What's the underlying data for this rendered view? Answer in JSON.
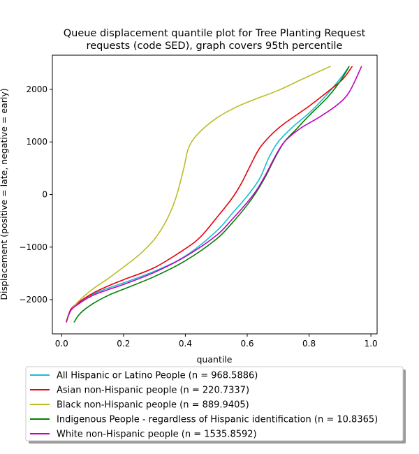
{
  "chart_data": {
    "type": "line",
    "title_lines": [
      "Queue displacement quantile plot for Tree Planting Request",
      "requests (code SED), graph covers 95th percentile"
    ],
    "xlabel": "quantile",
    "ylabel": "Displacement (positive = late, negative = early)",
    "xlim": [
      -0.03,
      1.02
    ],
    "ylim": [
      -2650,
      2650
    ],
    "xticks": [
      0.0,
      0.2,
      0.4,
      0.6,
      0.8,
      1.0
    ],
    "xtick_labels": [
      "0.0",
      "0.2",
      "0.4",
      "0.6",
      "0.8",
      "1.0"
    ],
    "yticks": [
      -2000,
      -1000,
      0,
      1000,
      2000
    ],
    "ytick_labels": [
      "−2000",
      "−1000",
      "0",
      "1000",
      "2000"
    ],
    "grid": false,
    "legend_position": "bottom-outside",
    "series": [
      {
        "name": "All Hispanic or Latino People (n = 968.5886)",
        "color": "#17becf",
        "points": [
          [
            0.015,
            -2430
          ],
          [
            0.03,
            -2200
          ],
          [
            0.06,
            -2050
          ],
          [
            0.1,
            -1900
          ],
          [
            0.15,
            -1780
          ],
          [
            0.2,
            -1680
          ],
          [
            0.3,
            -1460
          ],
          [
            0.4,
            -1170
          ],
          [
            0.5,
            -700
          ],
          [
            0.55,
            -370
          ],
          [
            0.6,
            -30
          ],
          [
            0.64,
            300
          ],
          [
            0.67,
            700
          ],
          [
            0.7,
            1000
          ],
          [
            0.75,
            1300
          ],
          [
            0.8,
            1550
          ],
          [
            0.85,
            1850
          ],
          [
            0.9,
            2200
          ],
          [
            0.93,
            2440
          ]
        ]
      },
      {
        "name": "Asian non-Hispanic people (n = 220.7337)",
        "color": "#e8000b",
        "points": [
          [
            0.015,
            -2430
          ],
          [
            0.03,
            -2180
          ],
          [
            0.06,
            -2030
          ],
          [
            0.1,
            -1880
          ],
          [
            0.15,
            -1740
          ],
          [
            0.2,
            -1620
          ],
          [
            0.3,
            -1390
          ],
          [
            0.4,
            -1030
          ],
          [
            0.45,
            -800
          ],
          [
            0.5,
            -450
          ],
          [
            0.55,
            -80
          ],
          [
            0.58,
            200
          ],
          [
            0.61,
            550
          ],
          [
            0.64,
            880
          ],
          [
            0.68,
            1150
          ],
          [
            0.72,
            1350
          ],
          [
            0.8,
            1680
          ],
          [
            0.87,
            2000
          ],
          [
            0.91,
            2200
          ],
          [
            0.94,
            2440
          ]
        ]
      },
      {
        "name": "Black non-Hispanic people (n = 889.9405)",
        "color": "#bcbd22",
        "points": [
          [
            0.015,
            -2400
          ],
          [
            0.03,
            -2200
          ],
          [
            0.06,
            -2000
          ],
          [
            0.1,
            -1800
          ],
          [
            0.15,
            -1600
          ],
          [
            0.2,
            -1380
          ],
          [
            0.25,
            -1150
          ],
          [
            0.3,
            -850
          ],
          [
            0.34,
            -480
          ],
          [
            0.37,
            -50
          ],
          [
            0.395,
            500
          ],
          [
            0.41,
            880
          ],
          [
            0.44,
            1150
          ],
          [
            0.5,
            1450
          ],
          [
            0.56,
            1650
          ],
          [
            0.62,
            1800
          ],
          [
            0.7,
            1980
          ],
          [
            0.78,
            2200
          ],
          [
            0.87,
            2440
          ]
        ]
      },
      {
        "name": "Indigenous People - regardless of Hispanic identification (n = 10.8365)",
        "color": "#008000",
        "points": [
          [
            0.04,
            -2430
          ],
          [
            0.06,
            -2260
          ],
          [
            0.1,
            -2080
          ],
          [
            0.15,
            -1920
          ],
          [
            0.2,
            -1800
          ],
          [
            0.3,
            -1560
          ],
          [
            0.4,
            -1260
          ],
          [
            0.5,
            -850
          ],
          [
            0.55,
            -550
          ],
          [
            0.6,
            -200
          ],
          [
            0.63,
            50
          ],
          [
            0.66,
            350
          ],
          [
            0.69,
            700
          ],
          [
            0.72,
            1000
          ],
          [
            0.76,
            1250
          ],
          [
            0.8,
            1500
          ],
          [
            0.86,
            1850
          ],
          [
            0.9,
            2150
          ],
          [
            0.93,
            2440
          ]
        ]
      },
      {
        "name": "White non-Hispanic people (n = 1535.8592)",
        "color": "#bf00bf",
        "points": [
          [
            0.015,
            -2430
          ],
          [
            0.03,
            -2200
          ],
          [
            0.06,
            -2060
          ],
          [
            0.1,
            -1920
          ],
          [
            0.15,
            -1810
          ],
          [
            0.2,
            -1710
          ],
          [
            0.3,
            -1480
          ],
          [
            0.4,
            -1180
          ],
          [
            0.5,
            -780
          ],
          [
            0.55,
            -480
          ],
          [
            0.6,
            -150
          ],
          [
            0.63,
            80
          ],
          [
            0.66,
            380
          ],
          [
            0.69,
            720
          ],
          [
            0.72,
            1000
          ],
          [
            0.77,
            1250
          ],
          [
            0.83,
            1460
          ],
          [
            0.89,
            1700
          ],
          [
            0.93,
            1950
          ],
          [
            0.97,
            2440
          ]
        ]
      }
    ]
  }
}
